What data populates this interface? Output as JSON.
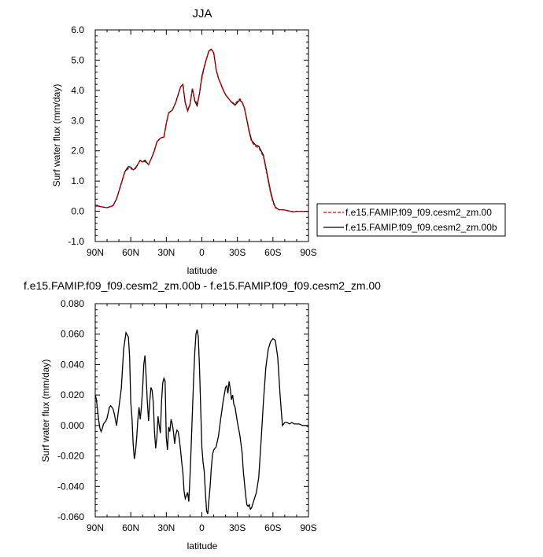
{
  "figure": {
    "top_title": "JJA",
    "bottom_title": "f.e15.FAMIP.f09_f09.cesm2_zm.00b - f.e15.FAMIP.f09_f09.cesm2_zm.00"
  },
  "legend": {
    "entries": [
      {
        "label": "f.e15.FAMIP.f09_f09.cesm2_zm.00",
        "color": "#e00000",
        "dash": "dashed"
      },
      {
        "label": "f.e15.FAMIP.f09_f09.cesm2_zm.00b",
        "color": "#000000",
        "dash": "solid"
      }
    ]
  },
  "chart_data": [
    {
      "type": "line",
      "title": "JJA",
      "xlabel": "latitude",
      "ylabel": "Surf water flux (mm/day)",
      "xlim": [
        90,
        -90
      ],
      "ylim": [
        -1.0,
        6.0
      ],
      "xticks": [
        90,
        60,
        30,
        0,
        -30,
        -60,
        -90
      ],
      "xtick_labels": [
        "90N",
        "60N",
        "30N",
        "0",
        "30S",
        "60S",
        "90S"
      ],
      "yticks": [
        -1.0,
        0.0,
        1.0,
        2.0,
        3.0,
        4.0,
        5.0,
        6.0
      ],
      "ytick_labels": [
        "-1.0",
        "0.0",
        "1.0",
        "2.0",
        "3.0",
        "4.0",
        "5.0",
        "6.0"
      ],
      "legend_position": "right",
      "x": [
        90,
        85,
        80,
        75,
        72,
        68,
        65,
        62,
        60,
        58,
        56,
        52,
        50,
        48,
        45,
        42,
        40,
        38,
        35,
        32,
        30,
        28,
        25,
        22,
        20,
        18,
        16,
        14,
        12,
        10,
        8,
        6,
        4,
        2,
        0,
        -2,
        -4,
        -6,
        -8,
        -10,
        -12,
        -14,
        -16,
        -18,
        -20,
        -22,
        -25,
        -28,
        -30,
        -32,
        -34,
        -36,
        -38,
        -40,
        -42,
        -45,
        -48,
        -52,
        -55,
        -58,
        -60,
        -62,
        -65,
        -68,
        -70,
        -72,
        -75,
        -78,
        -80,
        -85,
        -90
      ],
      "series": [
        {
          "name": "f.e15.FAMIP.f09_f09.cesm2_zm.00",
          "color": "#e00000",
          "dash": "dashed",
          "values": [
            0.18,
            0.15,
            0.12,
            0.18,
            0.4,
            0.9,
            1.3,
            1.42,
            1.4,
            1.38,
            1.45,
            1.68,
            1.62,
            1.65,
            1.55,
            1.8,
            2.0,
            2.3,
            2.42,
            2.45,
            2.9,
            3.25,
            3.35,
            3.6,
            3.85,
            4.1,
            4.18,
            3.6,
            3.35,
            3.55,
            4.05,
            3.7,
            3.55,
            3.9,
            4.4,
            4.75,
            5.05,
            5.3,
            5.35,
            5.25,
            4.7,
            4.4,
            4.2,
            4.0,
            3.85,
            3.75,
            3.62,
            3.55,
            3.65,
            3.72,
            3.62,
            3.4,
            3.0,
            2.6,
            2.3,
            2.15,
            2.1,
            1.8,
            1.2,
            0.6,
            0.3,
            0.12,
            0.05,
            0.05,
            0.04,
            0.02,
            0.0,
            -0.02,
            0.0,
            0.0,
            0.0
          ]
        },
        {
          "name": "f.e15.FAMIP.f09_f09.cesm2_zm.00b",
          "color": "#000000",
          "dash": "solid",
          "values": [
            0.2,
            0.15,
            0.12,
            0.19,
            0.41,
            0.92,
            1.31,
            1.48,
            1.46,
            1.37,
            1.42,
            1.69,
            1.63,
            1.69,
            1.54,
            1.81,
            2.02,
            2.29,
            2.42,
            2.46,
            2.91,
            3.26,
            3.34,
            3.61,
            3.86,
            4.11,
            4.2,
            3.58,
            3.32,
            3.53,
            4.06,
            3.65,
            3.49,
            3.9,
            4.46,
            4.78,
            5.06,
            5.31,
            5.36,
            5.24,
            4.69,
            4.4,
            4.21,
            4.02,
            3.86,
            3.76,
            3.61,
            3.51,
            3.6,
            3.68,
            3.6,
            3.41,
            3.03,
            2.65,
            2.35,
            2.2,
            2.15,
            1.85,
            1.26,
            0.66,
            0.35,
            0.14,
            0.05,
            0.05,
            0.04,
            0.02,
            0.0,
            -0.02,
            0.0,
            0.0,
            0.0
          ]
        }
      ]
    },
    {
      "type": "line",
      "title": "f.e15.FAMIP.f09_f09.cesm2_zm.00b - f.e15.FAMIP.f09_f09.cesm2_zm.00",
      "xlabel": "latitude",
      "ylabel": "Surf water flux (mm/day)",
      "xlim": [
        90,
        -90
      ],
      "ylim": [
        -0.06,
        0.08
      ],
      "xticks": [
        90,
        60,
        30,
        0,
        -30,
        -60,
        -90
      ],
      "xtick_labels": [
        "90N",
        "60N",
        "30N",
        "0",
        "30S",
        "60S",
        "90S"
      ],
      "yticks": [
        -0.06,
        -0.04,
        -0.02,
        0.0,
        0.02,
        0.04,
        0.06,
        0.08
      ],
      "ytick_labels": [
        "-0.060",
        "-0.040",
        "-0.020",
        "0.000",
        "0.020",
        "0.040",
        "0.060",
        "0.080"
      ],
      "x": [
        90,
        89,
        88,
        87,
        86,
        85,
        84,
        83,
        81,
        80,
        78,
        77,
        76,
        75,
        74,
        73,
        72,
        70,
        68,
        66,
        64,
        62,
        61,
        60,
        59,
        58,
        57,
        56,
        55,
        54,
        53,
        52,
        51,
        50,
        49,
        48,
        47,
        46,
        45,
        44,
        43,
        42,
        41,
        40,
        39,
        38,
        37,
        36,
        35,
        34,
        33,
        32,
        31,
        30,
        29,
        28,
        27,
        26,
        25,
        24,
        23,
        22,
        21,
        20,
        19,
        18,
        17,
        16,
        15,
        14,
        13,
        12,
        11,
        10,
        9,
        8,
        7,
        6,
        5,
        4,
        3,
        2,
        1,
        0,
        -1,
        -2,
        -3,
        -4,
        -5,
        -6,
        -7,
        -8,
        -9,
        -10,
        -12,
        -14,
        -16,
        -18,
        -20,
        -21,
        -22,
        -23,
        -24,
        -25,
        -26,
        -27,
        -28,
        -30,
        -32,
        -34,
        -35,
        -36,
        -37,
        -38,
        -39,
        -40,
        -41,
        -42,
        -44,
        -46,
        -48,
        -50,
        -52,
        -54,
        -56,
        -58,
        -60,
        -62,
        -64,
        -66,
        -68,
        -70,
        -72,
        -74,
        -76,
        -78,
        -80,
        -82,
        -85,
        -88,
        -90
      ],
      "series": [
        {
          "name": "",
          "color": "#000000",
          "dash": "solid",
          "values": [
            0.02,
            0.017,
            0.01,
            0.003,
            -0.002,
            -0.004,
            -0.002,
            0.001,
            0.003,
            0.005,
            0.012,
            0.013,
            0.012,
            0.011,
            0.008,
            0.004,
            0.0,
            0.012,
            0.024,
            0.05,
            0.061,
            0.058,
            0.045,
            0.015,
            0.005,
            -0.012,
            -0.022,
            -0.017,
            -0.008,
            0.004,
            0.012,
            0.004,
            0.012,
            0.024,
            0.04,
            0.046,
            0.032,
            0.016,
            0.003,
            0.016,
            0.025,
            0.023,
            0.015,
            -0.004,
            -0.015,
            -0.008,
            0.006,
            0.0,
            -0.005,
            0.016,
            0.028,
            0.031,
            0.029,
            -0.008,
            -0.016,
            -0.001,
            -0.004,
            0.004,
            0.001,
            -0.004,
            -0.012,
            -0.006,
            -0.003,
            -0.004,
            -0.009,
            -0.016,
            -0.024,
            -0.031,
            -0.043,
            -0.048,
            -0.046,
            -0.044,
            -0.05,
            -0.034,
            -0.014,
            0.009,
            0.03,
            0.048,
            0.06,
            0.063,
            0.058,
            0.038,
            0.012,
            -0.014,
            -0.024,
            -0.03,
            -0.044,
            -0.056,
            -0.058,
            -0.049,
            -0.04,
            -0.028,
            -0.019,
            -0.016,
            -0.014,
            -0.007,
            0.005,
            0.016,
            0.025,
            0.026,
            0.021,
            0.029,
            0.024,
            0.017,
            0.02,
            0.014,
            0.012,
            0.002,
            -0.006,
            -0.018,
            -0.03,
            -0.038,
            -0.046,
            -0.052,
            -0.053,
            -0.052,
            -0.055,
            -0.054,
            -0.049,
            -0.044,
            -0.034,
            -0.01,
            0.016,
            0.038,
            0.05,
            0.055,
            0.057,
            0.056,
            0.045,
            0.02,
            0.0,
            0.002,
            0.002,
            0.001,
            0.002,
            0.001,
            0.001,
            0.001,
            0.0,
            0.0,
            -0.001
          ]
        }
      ]
    }
  ]
}
